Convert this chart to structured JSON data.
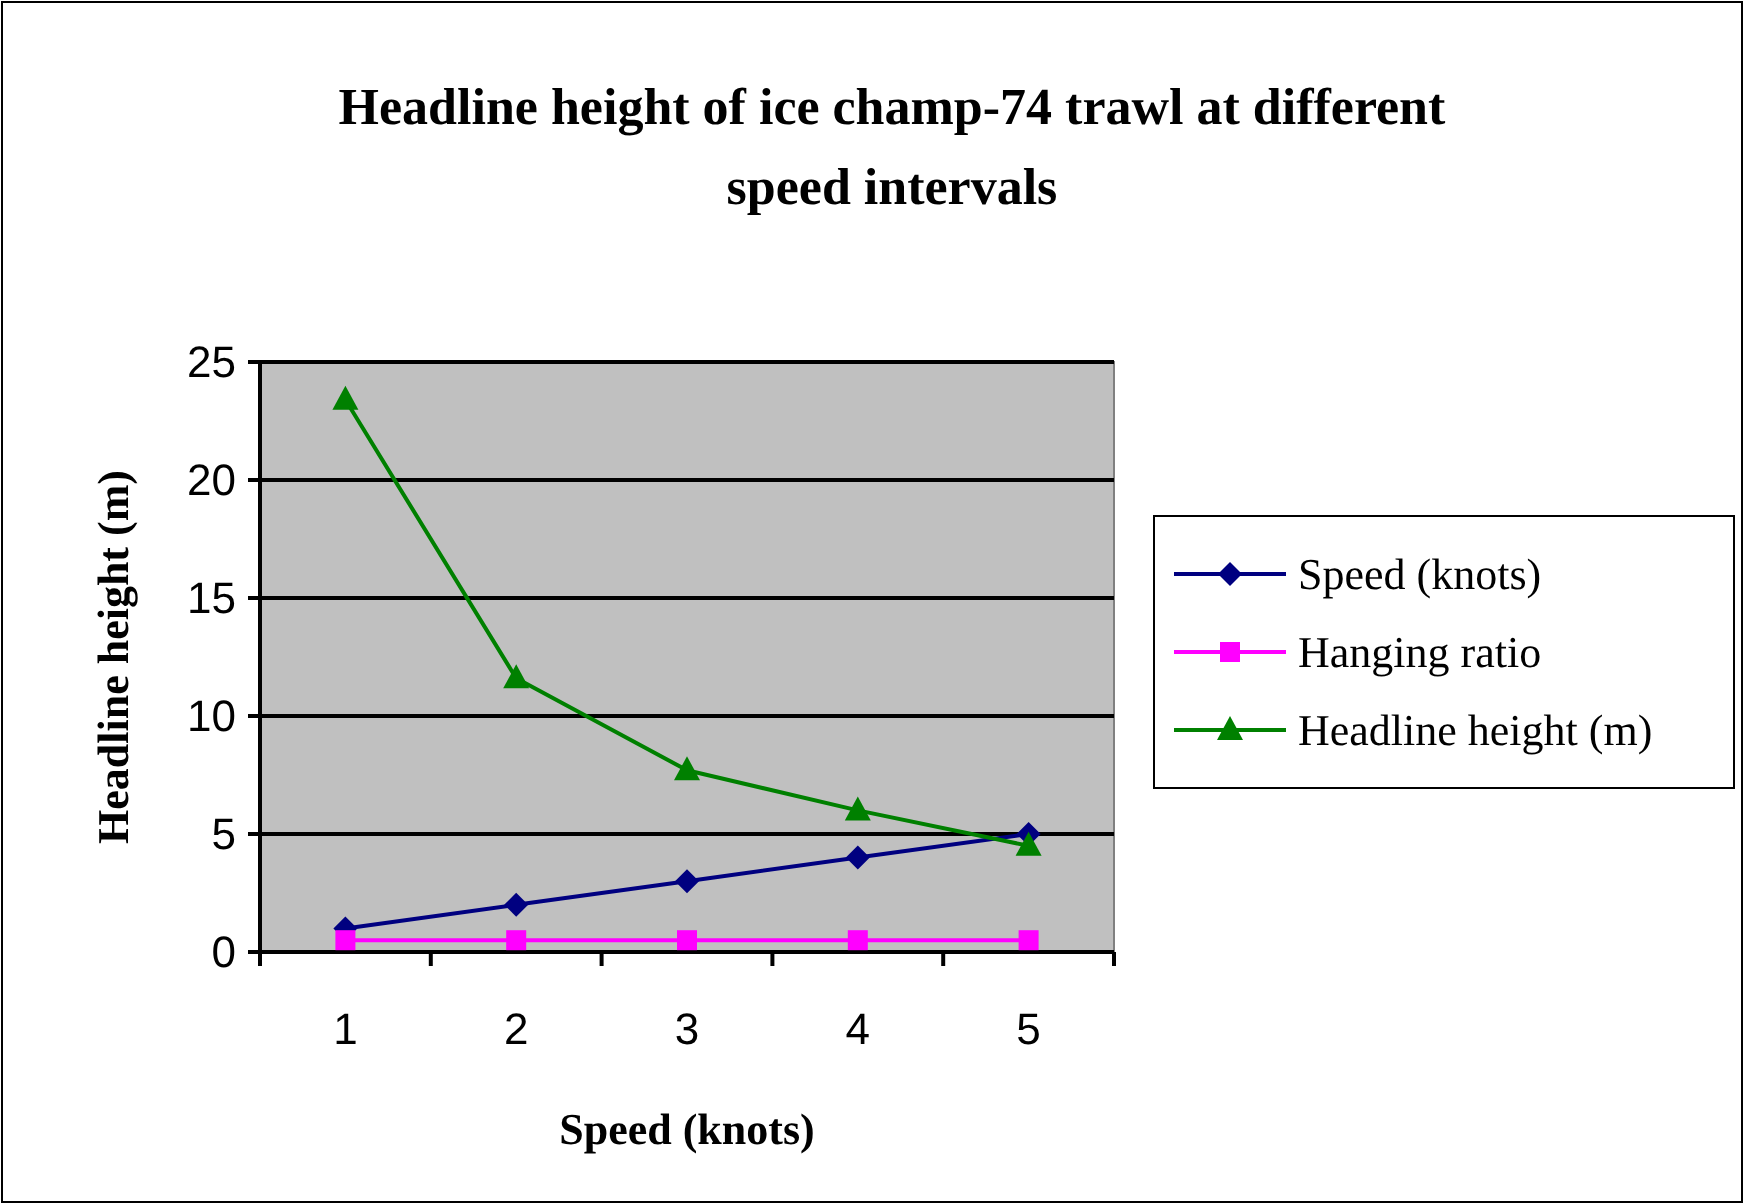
{
  "chart_data": {
    "type": "line",
    "title": "Headline height of ice champ-74 trawl at different speed intervals",
    "xlabel": "Speed (knots)",
    "ylabel": "Headline height (m)",
    "categories": [
      "1",
      "2",
      "3",
      "4",
      "5"
    ],
    "series": [
      {
        "name": "Speed (knots)",
        "color": "#000080",
        "marker": "diamond",
        "values": [
          1,
          2,
          3,
          4,
          5
        ]
      },
      {
        "name": "Hanging ratio",
        "color": "#ff00ff",
        "marker": "square",
        "values": [
          0.5,
          0.5,
          0.5,
          0.5,
          0.5
        ]
      },
      {
        "name": "Headline height (m)",
        "color": "#008000",
        "marker": "triangle",
        "values": [
          23.4,
          11.6,
          7.7,
          6.0,
          4.5
        ]
      }
    ],
    "ylim": [
      0,
      25
    ],
    "yticks": [
      0,
      5,
      10,
      15,
      20,
      25
    ],
    "grid": "y",
    "legend": "right"
  }
}
